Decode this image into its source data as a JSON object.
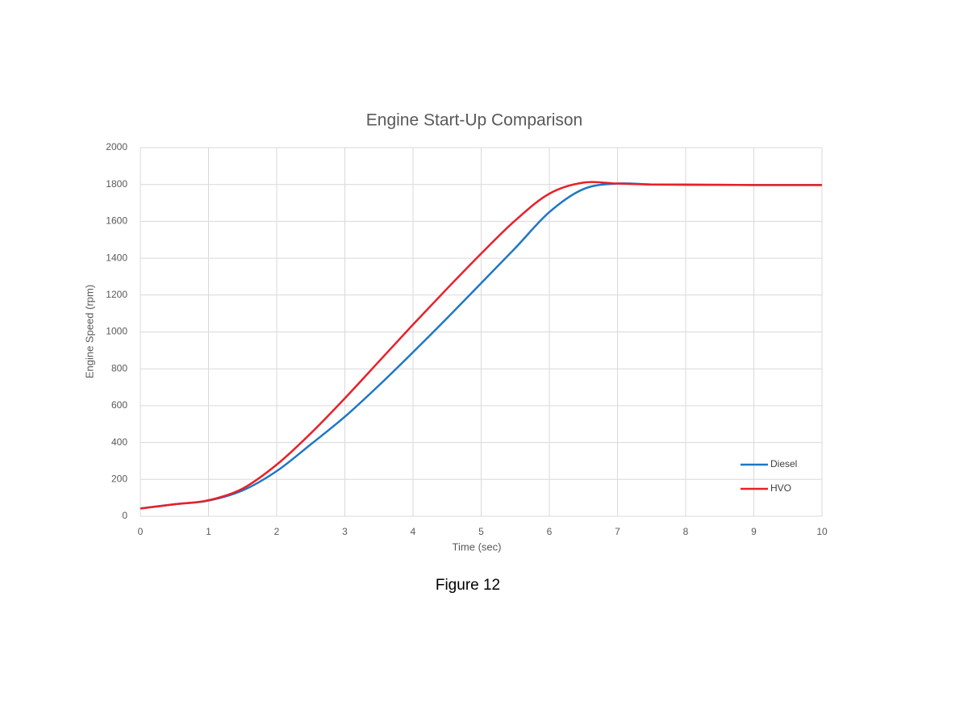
{
  "chart_data": {
    "type": "line",
    "title": "Engine Start-Up Comparison",
    "caption": "Figure 12",
    "x_label": "Time (sec)",
    "y_label": "Engine Speed (rpm)",
    "x": [
      0,
      0.5,
      1,
      1.5,
      2,
      2.5,
      3,
      3.5,
      4,
      4.5,
      5,
      5.5,
      6,
      6.5,
      7,
      7.5,
      8,
      8.5,
      9,
      9.5,
      10
    ],
    "series": [
      {
        "name": "Diesel",
        "color": "#1f77c4",
        "values": [
          42,
          65,
          85,
          140,
          245,
          390,
          540,
          710,
          890,
          1075,
          1265,
          1455,
          1650,
          1775,
          1805,
          1800,
          1800,
          1798,
          1797,
          1797,
          1797
        ]
      },
      {
        "name": "HVO",
        "color": "#e8202a",
        "values": [
          42,
          65,
          87,
          150,
          280,
          450,
          640,
          840,
          1040,
          1235,
          1425,
          1605,
          1750,
          1810,
          1805,
          1800,
          1798,
          1798,
          1797,
          1797,
          1797
        ]
      }
    ],
    "xlim": [
      0,
      10
    ],
    "xticks": [
      0,
      1,
      2,
      3,
      4,
      5,
      6,
      7,
      8,
      9,
      10
    ],
    "ylim": [
      0,
      2000
    ],
    "yticks": [
      0,
      200,
      400,
      600,
      800,
      1000,
      1200,
      1400,
      1600,
      1800,
      2000
    ],
    "grid": true,
    "legend": "lower-right"
  }
}
